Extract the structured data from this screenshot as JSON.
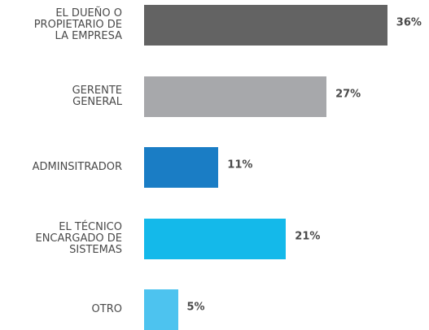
{
  "chart_data": {
    "type": "bar",
    "orientation": "horizontal",
    "categories": [
      "EL DUEÑO O\nPROPIETARIO DE\nLA EMPRESA",
      "GERENTE\nGENERAL",
      "ADMINSITRADOR",
      "EL TÉCNICO\nENCARGADO DE\nSISTEMAS",
      "OTRO"
    ],
    "values": [
      36,
      27,
      11,
      21,
      5
    ],
    "value_labels": [
      "36%",
      "27%",
      "11%",
      "21%",
      "5%"
    ],
    "colors": [
      "#636363",
      "#a7a8ab",
      "#1a7dc5",
      "#14b9ea",
      "#4dc3ef"
    ]
  }
}
